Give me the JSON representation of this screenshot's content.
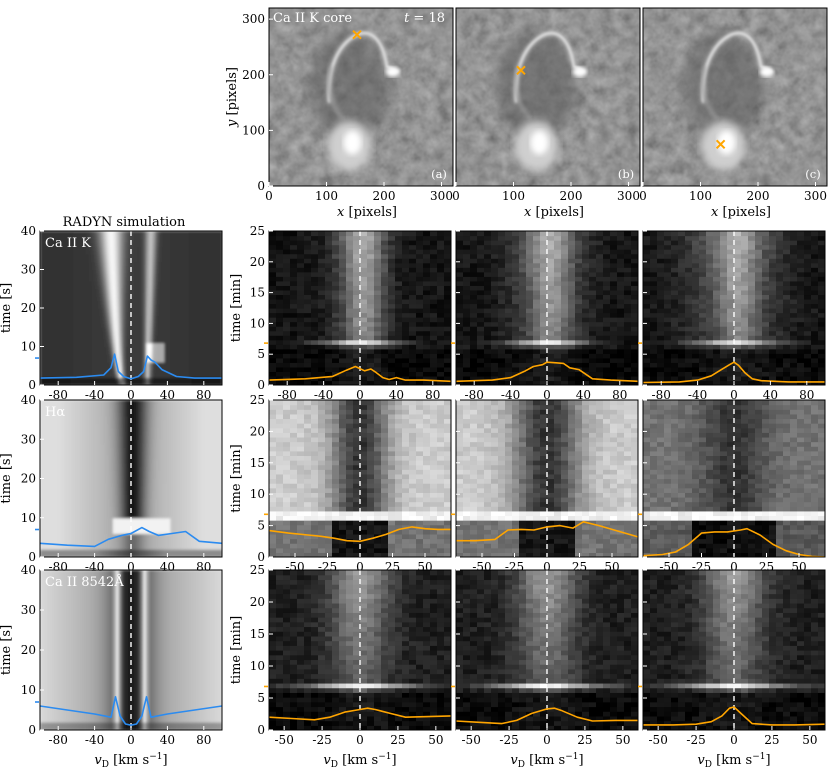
{
  "colors": {
    "profile_obs": "#ffa500",
    "profile_sim": "#2b8bf0",
    "marker": "#ffa500",
    "dashed_line": "#ffffff",
    "panel_text": "#ffffff"
  },
  "text": {
    "sim_title": "RADYN simulation",
    "time_label": "t = 18",
    "image_label": "Ca II K core",
    "panel_labels": [
      "(a)",
      "(b)",
      "(c)"
    ],
    "line_labels": [
      "Ca II K",
      "Hα",
      "Ca II 8542Å"
    ]
  },
  "chart_data": [
    {
      "id": "images",
      "type": "heatmap",
      "title": "Ca II K core",
      "xlabel": "x [pixels]",
      "ylabel": "y [pixels]",
      "xlim": [
        0,
        320
      ],
      "ylim": [
        0,
        320
      ],
      "xticks": [
        0,
        100,
        200,
        300
      ],
      "yticks": [
        0,
        100,
        200,
        300
      ],
      "markers": [
        {
          "panel": "(a)",
          "x": 153,
          "y": 272
        },
        {
          "panel": "(b)",
          "x": 113,
          "y": 208
        },
        {
          "panel": "(c)",
          "x": 135,
          "y": 75
        }
      ]
    },
    {
      "id": "radyn",
      "type": "heatmap",
      "title": "RADYN simulation",
      "ylabel": "time [s]",
      "xlabel": "vD [km s-1]",
      "ylim": [
        0,
        40
      ],
      "yticks": [
        0,
        10,
        20,
        30,
        40
      ],
      "rows": [
        {
          "line": "Ca II K",
          "xlim": [
            -100,
            100
          ],
          "xticks": [
            -80,
            -40,
            0,
            40,
            80
          ],
          "profile": {
            "x": [
              -100,
              -60,
              -30,
              -22,
              -18,
              -14,
              -8,
              0,
              8,
              14,
              18,
              22,
              26,
              34,
              50,
              70,
              100
            ],
            "y": [
              1.8,
              2.0,
              2.6,
              4.5,
              8.0,
              3.5,
              2.2,
              1.6,
              2.2,
              3.5,
              7.5,
              6.5,
              6.0,
              4.0,
              2.2,
              1.8,
              1.8
            ]
          },
          "marker_t": 7
        },
        {
          "line": "Hα",
          "xlim": [
            -100,
            100
          ],
          "xticks": [
            -80,
            -40,
            0,
            40,
            80
          ],
          "profile": {
            "x": [
              -100,
              -70,
              -40,
              -25,
              -10,
              0,
              12,
              20,
              30,
              45,
              60,
              75,
              100
            ],
            "y": [
              3.5,
              3.0,
              2.7,
              4.5,
              5.5,
              6.0,
              7.5,
              6.5,
              5.5,
              6.0,
              6.5,
              4.0,
              3.5
            ]
          },
          "marker_t": 7
        },
        {
          "line": "Ca II 8542Å",
          "xlim": [
            -100,
            100
          ],
          "xticks": [
            -80,
            -40,
            0,
            40,
            80
          ],
          "profile": {
            "x": [
              -100,
              -70,
              -40,
              -22,
              -17,
              -12,
              -6,
              0,
              6,
              12,
              17,
              22,
              40,
              70,
              100
            ],
            "y": [
              6.0,
              5.0,
              4.0,
              3.2,
              8.3,
              3.5,
              1.5,
              1.2,
              1.5,
              3.5,
              8.3,
              3.2,
              4.0,
              5.0,
              6.0
            ]
          },
          "marker_t": 7
        }
      ]
    },
    {
      "id": "observations",
      "type": "heatmap",
      "ylabel": "time [min]",
      "xlabel": "vD [km s-1]",
      "ylim": [
        0,
        25
      ],
      "yticks": [
        0,
        5,
        10,
        15,
        20,
        25
      ],
      "marker_t": 6.8,
      "rows": [
        {
          "line": "Ca II K",
          "xlim": [
            -100,
            100
          ],
          "xticks": [
            -80,
            -40,
            0,
            40,
            80
          ],
          "profiles": [
            {
              "x": [
                -100,
                -60,
                -30,
                -15,
                -5,
                5,
                12,
                18,
                25,
                32,
                40,
                50,
                70,
                100
              ],
              "y": [
                0.8,
                1.0,
                1.4,
                2.4,
                3.0,
                2.3,
                2.6,
                2.0,
                1.2,
                0.9,
                1.2,
                0.8,
                0.8,
                0.6
              ]
            },
            {
              "x": [
                -100,
                -60,
                -40,
                -25,
                -15,
                -5,
                0,
                10,
                18,
                25,
                35,
                50,
                70,
                100
              ],
              "y": [
                0.6,
                0.8,
                1.2,
                2.2,
                3.0,
                3.3,
                3.7,
                3.6,
                3.5,
                2.8,
                2.5,
                1.0,
                0.8,
                0.6
              ]
            },
            {
              "x": [
                -100,
                -60,
                -40,
                -25,
                -15,
                -5,
                0,
                5,
                12,
                20,
                30,
                45,
                60,
                100
              ],
              "y": [
                0.4,
                0.5,
                0.8,
                1.5,
                2.4,
                3.3,
                3.7,
                3.2,
                2.0,
                1.0,
                0.7,
                0.6,
                0.5,
                0.5
              ]
            }
          ]
        },
        {
          "line": "Hα",
          "xlim": [
            -70,
            70
          ],
          "xticks": [
            -50,
            -25,
            0,
            25,
            50
          ],
          "profiles": [
            {
              "x": [
                -70,
                -55,
                -40,
                -30,
                -20,
                -10,
                0,
                10,
                20,
                30,
                40,
                50,
                60,
                70
              ],
              "y": [
                4.2,
                3.8,
                3.5,
                3.3,
                3.0,
                2.6,
                2.5,
                3.0,
                3.6,
                4.4,
                4.8,
                4.5,
                4.4,
                4.4
              ]
            },
            {
              "x": [
                -70,
                -55,
                -40,
                -30,
                -20,
                -10,
                0,
                10,
                20,
                28,
                40,
                50,
                60,
                70
              ],
              "y": [
                2.6,
                2.6,
                2.8,
                4.3,
                4.4,
                4.3,
                4.8,
                5.0,
                4.6,
                5.6,
                5.0,
                4.4,
                3.8,
                3.2
              ]
            },
            {
              "x": [
                -70,
                -55,
                -45,
                -35,
                -25,
                -15,
                -5,
                5,
                10,
                20,
                30,
                40,
                50,
                60,
                70
              ],
              "y": [
                0.2,
                0.4,
                0.8,
                2.0,
                3.8,
                4.0,
                4.0,
                4.3,
                4.5,
                3.5,
                2.0,
                1.0,
                0.4,
                0.1,
                0.0
              ]
            }
          ]
        },
        {
          "line": "Ca II 8542Å",
          "xlim": [
            -60,
            60
          ],
          "xticks": [
            -50,
            -25,
            0,
            25,
            50
          ],
          "profiles": [
            {
              "x": [
                -60,
                -45,
                -30,
                -20,
                -10,
                0,
                5,
                10,
                20,
                30,
                45,
                60
              ],
              "y": [
                2.0,
                1.8,
                1.6,
                2.0,
                2.8,
                3.2,
                3.4,
                3.2,
                2.6,
                2.0,
                2.1,
                2.2
              ]
            },
            {
              "x": [
                -60,
                -45,
                -30,
                -20,
                -10,
                0,
                5,
                10,
                20,
                30,
                45,
                60
              ],
              "y": [
                1.4,
                1.2,
                1.0,
                1.5,
                2.6,
                3.3,
                3.4,
                3.0,
                2.0,
                1.4,
                1.5,
                1.5
              ]
            },
            {
              "x": [
                -60,
                -40,
                -25,
                -15,
                -8,
                -3,
                0,
                5,
                12,
                25,
                40,
                60
              ],
              "y": [
                0.8,
                0.8,
                0.9,
                1.3,
                2.2,
                3.4,
                3.6,
                2.5,
                1.0,
                0.8,
                0.8,
                0.9
              ]
            }
          ]
        }
      ]
    }
  ]
}
